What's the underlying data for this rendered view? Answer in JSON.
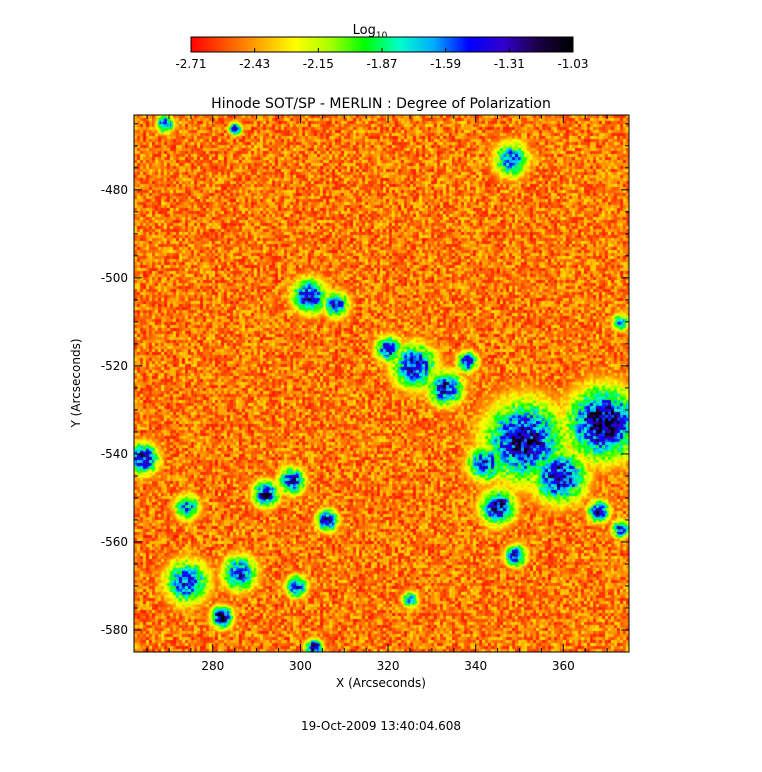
{
  "chart_data": {
    "type": "heatmap",
    "title": "Hinode SOT/SP - MERLIN : Degree of Polarization",
    "xlabel": "X (Arcseconds)",
    "ylabel": "Y (Arcseconds)",
    "footer": "19-Oct-2009 13:40:04.608",
    "colorbar": {
      "label_base": "Log",
      "label_sub": "10",
      "ticks": [
        "-2.71",
        "-2.43",
        "-2.15",
        "-1.87",
        "-1.59",
        "-1.31",
        "-1.03"
      ],
      "range": [
        -2.71,
        -1.03
      ],
      "colors": [
        "#ff0000",
        "#ff5500",
        "#ffaa00",
        "#ffff00",
        "#aaff00",
        "#00ff00",
        "#00ffcc",
        "#00aaff",
        "#0000ff",
        "#3300cc",
        "#1a0044",
        "#000000"
      ]
    },
    "xlim": [
      262,
      375
    ],
    "ylim": [
      -585,
      -463
    ],
    "xticks": [
      280,
      300,
      320,
      340,
      360
    ],
    "yticks": [
      -480,
      -500,
      -520,
      -540,
      -560,
      -580
    ],
    "features": [
      {
        "x": 369,
        "y": -533,
        "r": 8,
        "peak": -1.15
      },
      {
        "x": 351,
        "y": -537,
        "r": 9,
        "peak": -1.25
      },
      {
        "x": 359,
        "y": -545,
        "r": 6,
        "peak": -1.3
      },
      {
        "x": 345,
        "y": -552,
        "r": 4,
        "peak": -1.3
      },
      {
        "x": 349,
        "y": -563,
        "r": 2.5,
        "peak": -1.35
      },
      {
        "x": 368,
        "y": -553,
        "r": 2.5,
        "peak": -1.3
      },
      {
        "x": 342,
        "y": -542,
        "r": 4,
        "peak": -1.4
      },
      {
        "x": 373,
        "y": -557,
        "r": 2,
        "peak": -1.4
      },
      {
        "x": 326,
        "y": -520,
        "r": 5,
        "peak": -1.35
      },
      {
        "x": 333,
        "y": -525,
        "r": 4,
        "peak": -1.35
      },
      {
        "x": 320,
        "y": -516,
        "r": 3,
        "peak": -1.4
      },
      {
        "x": 338,
        "y": -519,
        "r": 2.5,
        "peak": -1.45
      },
      {
        "x": 302,
        "y": -504,
        "r": 4,
        "peak": -1.35
      },
      {
        "x": 308,
        "y": -506,
        "r": 3,
        "peak": -1.45
      },
      {
        "x": 292,
        "y": -549,
        "r": 3,
        "peak": -1.3
      },
      {
        "x": 298,
        "y": -546,
        "r": 3,
        "peak": -1.35
      },
      {
        "x": 306,
        "y": -555,
        "r": 2.5,
        "peak": -1.3
      },
      {
        "x": 264,
        "y": -541,
        "r": 3.5,
        "peak": -1.3
      },
      {
        "x": 282,
        "y": -577,
        "r": 2.5,
        "peak": -1.15
      },
      {
        "x": 274,
        "y": -569,
        "r": 5,
        "peak": -1.45
      },
      {
        "x": 286,
        "y": -567,
        "r": 4,
        "peak": -1.45
      },
      {
        "x": 299,
        "y": -570,
        "r": 2.5,
        "peak": -1.35
      },
      {
        "x": 303,
        "y": -584,
        "r": 2,
        "peak": -1.2
      },
      {
        "x": 348,
        "y": -473,
        "r": 4,
        "peak": -1.55
      },
      {
        "x": 269,
        "y": -465,
        "r": 2,
        "peak": -1.4
      },
      {
        "x": 285,
        "y": -466,
        "r": 1.5,
        "peak": -1.4
      },
      {
        "x": 373,
        "y": -510,
        "r": 2,
        "peak": -1.65
      },
      {
        "x": 274,
        "y": -552,
        "r": 3,
        "peak": -1.6
      },
      {
        "x": 325,
        "y": -573,
        "r": 2,
        "peak": -1.65
      }
    ]
  }
}
